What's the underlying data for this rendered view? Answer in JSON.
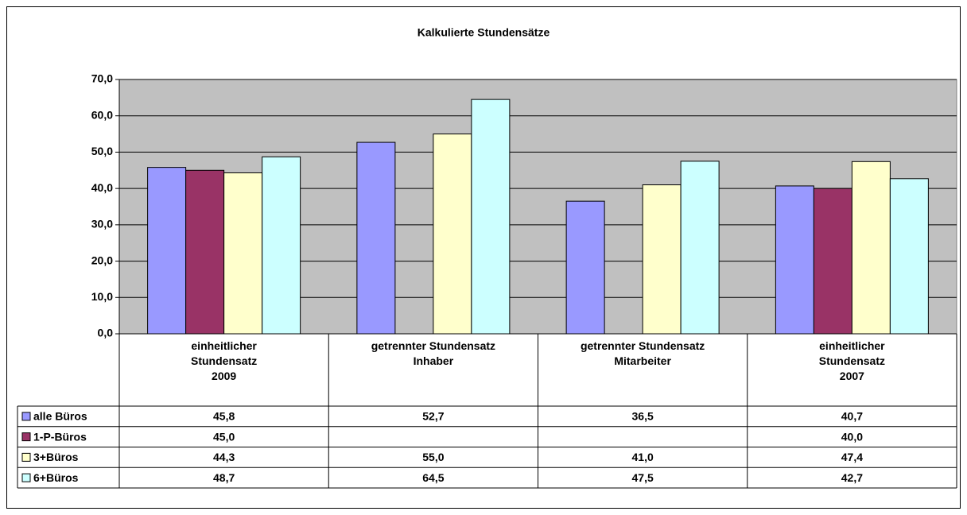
{
  "chart_data": {
    "type": "bar",
    "title": "Kalkulierte Stundensätze",
    "categories": [
      "einheitlicher\nStundensatz\n2009",
      "getrennter Stundensatz\nInhaber",
      "getrennter Stundensatz\nMitarbeiter",
      "einheitlicher\nStundensatz\n2007"
    ],
    "series": [
      {
        "name": "alle Büros",
        "color": "#9999ff",
        "values": [
          45.8,
          52.7,
          36.5,
          40.7
        ],
        "value_labels": [
          "45,8",
          "52,7",
          "36,5",
          "40,7"
        ]
      },
      {
        "name": "1-P-Büros",
        "color": "#993366",
        "values": [
          45.0,
          null,
          null,
          40.0
        ],
        "value_labels": [
          "45,0",
          null,
          null,
          "40,0"
        ]
      },
      {
        "name": "3+Büros",
        "color": "#ffffcc",
        "values": [
          44.3,
          55.0,
          41.0,
          47.4
        ],
        "value_labels": [
          "44,3",
          "55,0",
          "41,0",
          "47,4"
        ]
      },
      {
        "name": "6+Büros",
        "color": "#ccffff",
        "values": [
          48.7,
          64.5,
          47.5,
          42.7
        ],
        "value_labels": [
          "48,7",
          "64,5",
          "47,5",
          "42,7"
        ]
      }
    ],
    "ylim": [
      0,
      70
    ],
    "yticks": [
      {
        "value": 0,
        "label": "0,0"
      },
      {
        "value": 10,
        "label": "10,0"
      },
      {
        "value": 20,
        "label": "20,0"
      },
      {
        "value": 30,
        "label": "30,0"
      },
      {
        "value": 40,
        "label": "40,0"
      },
      {
        "value": 50,
        "label": "50,0"
      },
      {
        "value": 60,
        "label": "60,0"
      },
      {
        "value": 70,
        "label": "70,0"
      }
    ],
    "grid": true,
    "plot_background": "#c0c0c0"
  }
}
